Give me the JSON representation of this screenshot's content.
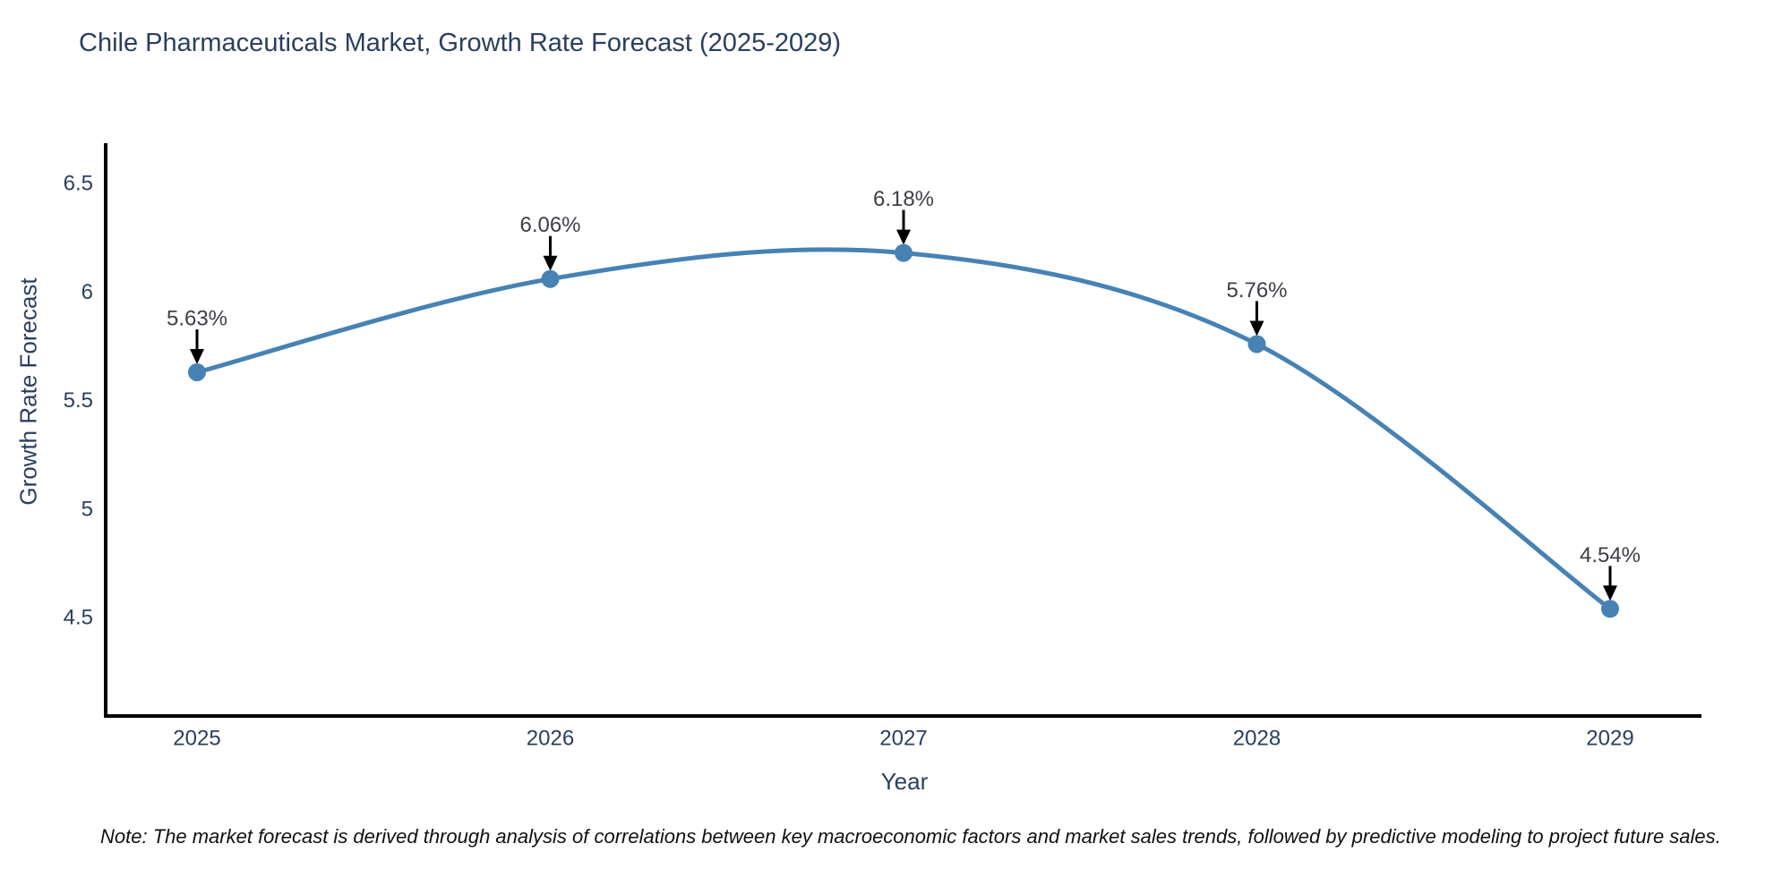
{
  "title": "Chile Pharmaceuticals Market, Growth Rate Forecast (2025-2029)",
  "note": "Note: The market forecast is derived through analysis of correlations between key macroeconomic factors and market sales trends, followed by predictive modeling to project future sales.",
  "chart_data": {
    "type": "line",
    "line_shape": "spline",
    "title": "Chile Pharmaceuticals Market, Growth Rate Forecast (2025-2029)",
    "xlabel": "Year",
    "ylabel": "Growth Rate Forecast",
    "x": [
      2025,
      2026,
      2027,
      2028,
      2029
    ],
    "y": [
      5.63,
      6.06,
      6.18,
      5.76,
      4.54
    ],
    "point_labels": [
      "5.63%",
      "6.06%",
      "6.18%",
      "5.76%",
      "4.54%"
    ],
    "x_tick_labels": [
      "2025",
      "2026",
      "2027",
      "2028",
      "2029"
    ],
    "y_tick_values": [
      6.5,
      6.0,
      5.5,
      5.0,
      4.5
    ],
    "y_tick_labels": [
      "6.5",
      "6",
      "5.5",
      "5",
      "4.5"
    ],
    "xlim": [
      2024.74,
      2029.26
    ],
    "ylim": [
      4.05,
      6.69
    ],
    "grid": false,
    "legend": "none",
    "markers": true,
    "annotations_have_arrows": true,
    "colors": {
      "line": "#4682b4",
      "marker": "#4682b4",
      "arrow": "#000000",
      "axis_line": "#000000",
      "title_text": "#2a3f5f",
      "axis_text": "#2a3f5f",
      "annotation_text": "#3d3f46",
      "background": "#ffffff"
    }
  }
}
